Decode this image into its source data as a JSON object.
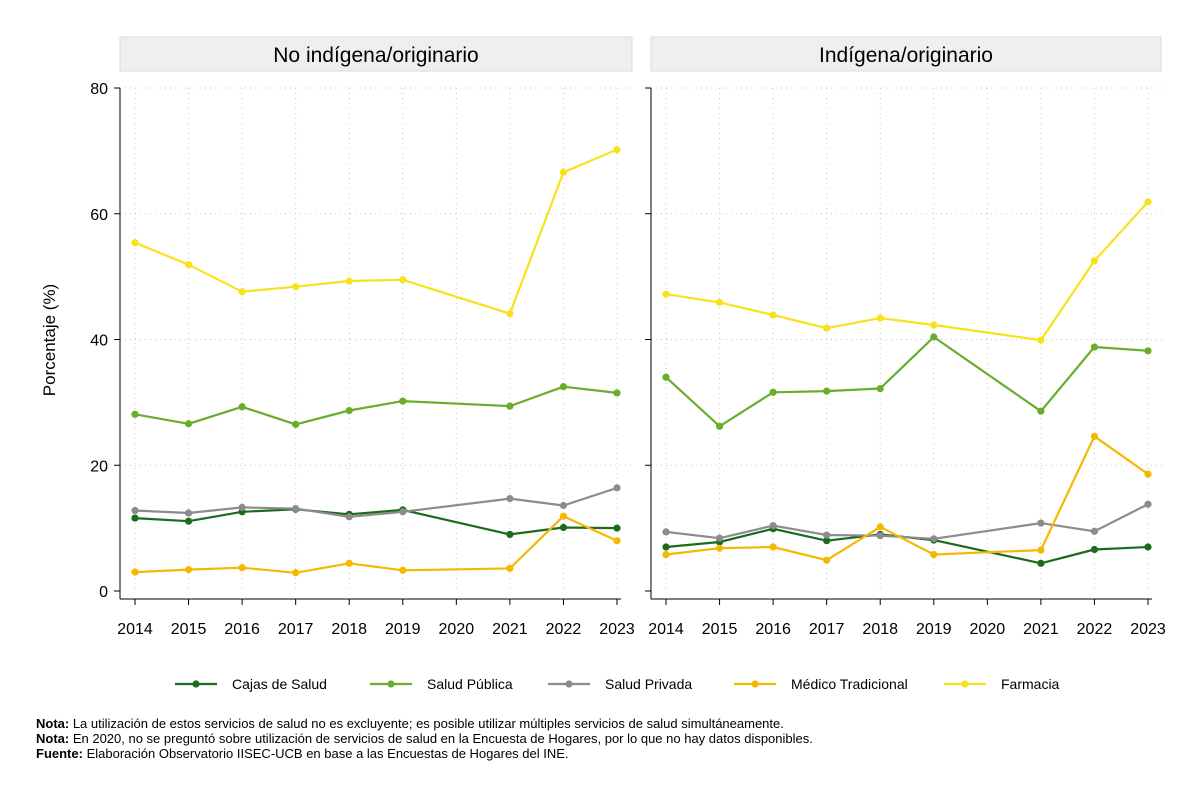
{
  "chart_data": {
    "type": "line",
    "ylabel": "Porcentaje (%)",
    "ylim": [
      0,
      80
    ],
    "yticks": [
      0,
      20,
      40,
      60,
      80
    ],
    "categories": [
      "2014",
      "2015",
      "2016",
      "2017",
      "2018",
      "2019",
      "2020",
      "2021",
      "2022",
      "2023"
    ],
    "grid": true,
    "legend_position": "bottom",
    "series_styles": [
      {
        "name": "Cajas de Salud",
        "color": "#1b6b1b"
      },
      {
        "name": "Salud Pública",
        "color": "#6aac2c"
      },
      {
        "name": "Salud Privada",
        "color": "#8c8c8c"
      },
      {
        "name": "Médico Tradicional",
        "color": "#f5b800"
      },
      {
        "name": "Farmacia",
        "color": "#f7e21b"
      }
    ],
    "panels": [
      {
        "title": "No indígena/originario",
        "series": [
          {
            "name": "Cajas de Salud",
            "values": [
              11.6,
              11.1,
              12.6,
              13.0,
              12.2,
              12.9,
              null,
              9.0,
              10.1,
              10.0
            ]
          },
          {
            "name": "Salud Pública",
            "values": [
              28.1,
              26.6,
              29.3,
              26.5,
              28.7,
              30.2,
              null,
              29.4,
              32.5,
              31.5
            ]
          },
          {
            "name": "Salud Privada",
            "values": [
              12.8,
              12.4,
              13.3,
              13.1,
              11.8,
              12.6,
              null,
              14.7,
              13.6,
              16.4
            ]
          },
          {
            "name": "Médico Tradicional",
            "values": [
              3.0,
              3.4,
              3.7,
              2.9,
              4.4,
              3.3,
              null,
              3.6,
              11.9,
              8.0
            ]
          },
          {
            "name": "Farmacia",
            "values": [
              55.4,
              51.9,
              47.6,
              48.4,
              49.3,
              49.5,
              null,
              44.1,
              66.6,
              70.2
            ]
          }
        ]
      },
      {
        "title": "Indígena/originario",
        "series": [
          {
            "name": "Cajas de Salud",
            "values": [
              7.0,
              7.8,
              9.9,
              8.0,
              9.0,
              8.1,
              null,
              4.4,
              6.6,
              7.0
            ]
          },
          {
            "name": "Salud Pública",
            "values": [
              34.0,
              26.2,
              31.6,
              31.8,
              32.2,
              40.4,
              null,
              28.6,
              38.8,
              38.2
            ]
          },
          {
            "name": "Salud Privada",
            "values": [
              9.4,
              8.4,
              10.4,
              8.9,
              8.8,
              8.3,
              null,
              10.8,
              9.5,
              13.8
            ]
          },
          {
            "name": "Médico Tradicional",
            "values": [
              5.8,
              6.8,
              7.0,
              4.9,
              10.2,
              5.8,
              null,
              6.5,
              24.6,
              18.6
            ]
          },
          {
            "name": "Farmacia",
            "values": [
              47.2,
              45.9,
              43.9,
              41.8,
              43.4,
              42.3,
              null,
              39.9,
              52.5,
              61.9
            ]
          }
        ]
      }
    ]
  },
  "notes": [
    {
      "label": "Nota:",
      "text": " La utilización de estos servicios de salud no es excluyente; es posible utilizar múltiples servicios de salud simultáneamente."
    },
    {
      "label": "Nota:",
      "text": " En 2020, no se preguntó sobre utilización de servicios de salud en la Encuesta de Hogares, por lo que no hay datos disponibles."
    },
    {
      "label": "Fuente:",
      "text": " Elaboración Observatorio IISEC-UCB en base a las Encuestas de Hogares del INE."
    }
  ]
}
